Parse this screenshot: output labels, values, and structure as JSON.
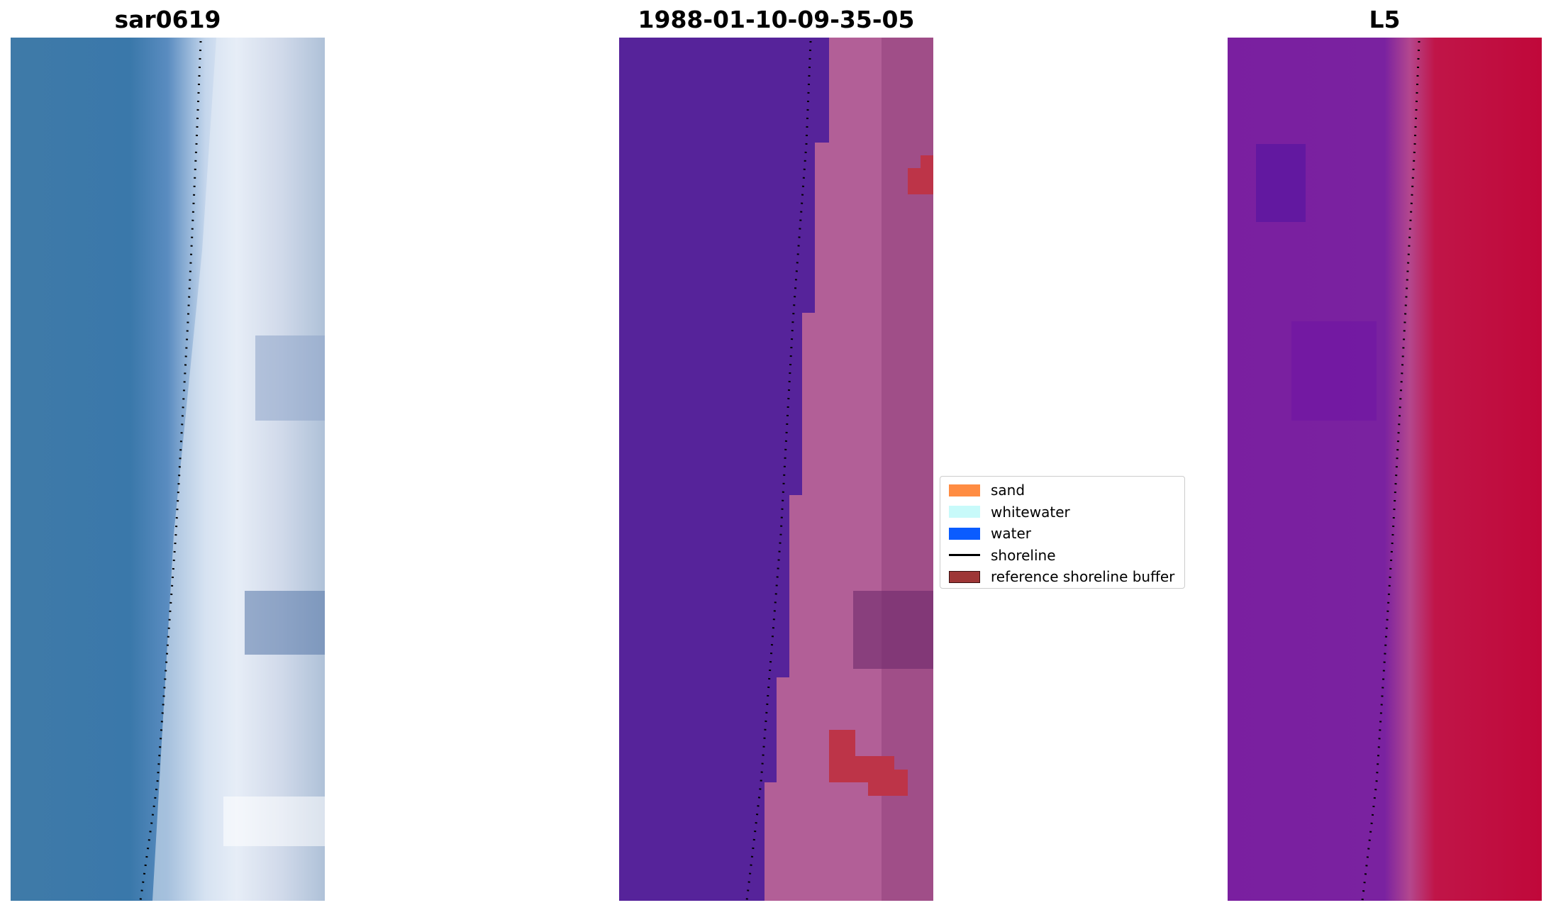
{
  "panels": {
    "left_title": "sar0619",
    "center_title": "1988-01-10-09-35-05",
    "right_title": "L5"
  },
  "legend": {
    "items": [
      {
        "label": "sand",
        "color": "#ff8c42"
      },
      {
        "label": "whitewater",
        "color": "#c8fafa"
      },
      {
        "label": "water",
        "color": "#0a5cff"
      },
      {
        "label": "shoreline",
        "color": "#000000"
      },
      {
        "label": "reference shoreline buffer",
        "color": "#9e3636"
      }
    ]
  },
  "colors": {
    "rgb_water": "#3a7aaa",
    "rgb_whitewater": "#dfe6f2",
    "class_water": "#56239a",
    "class_land": "#b25f97",
    "class_buffer": "#bd3448",
    "mndwi_water": "#7a22a0",
    "mndwi_land": "#c8103f"
  }
}
